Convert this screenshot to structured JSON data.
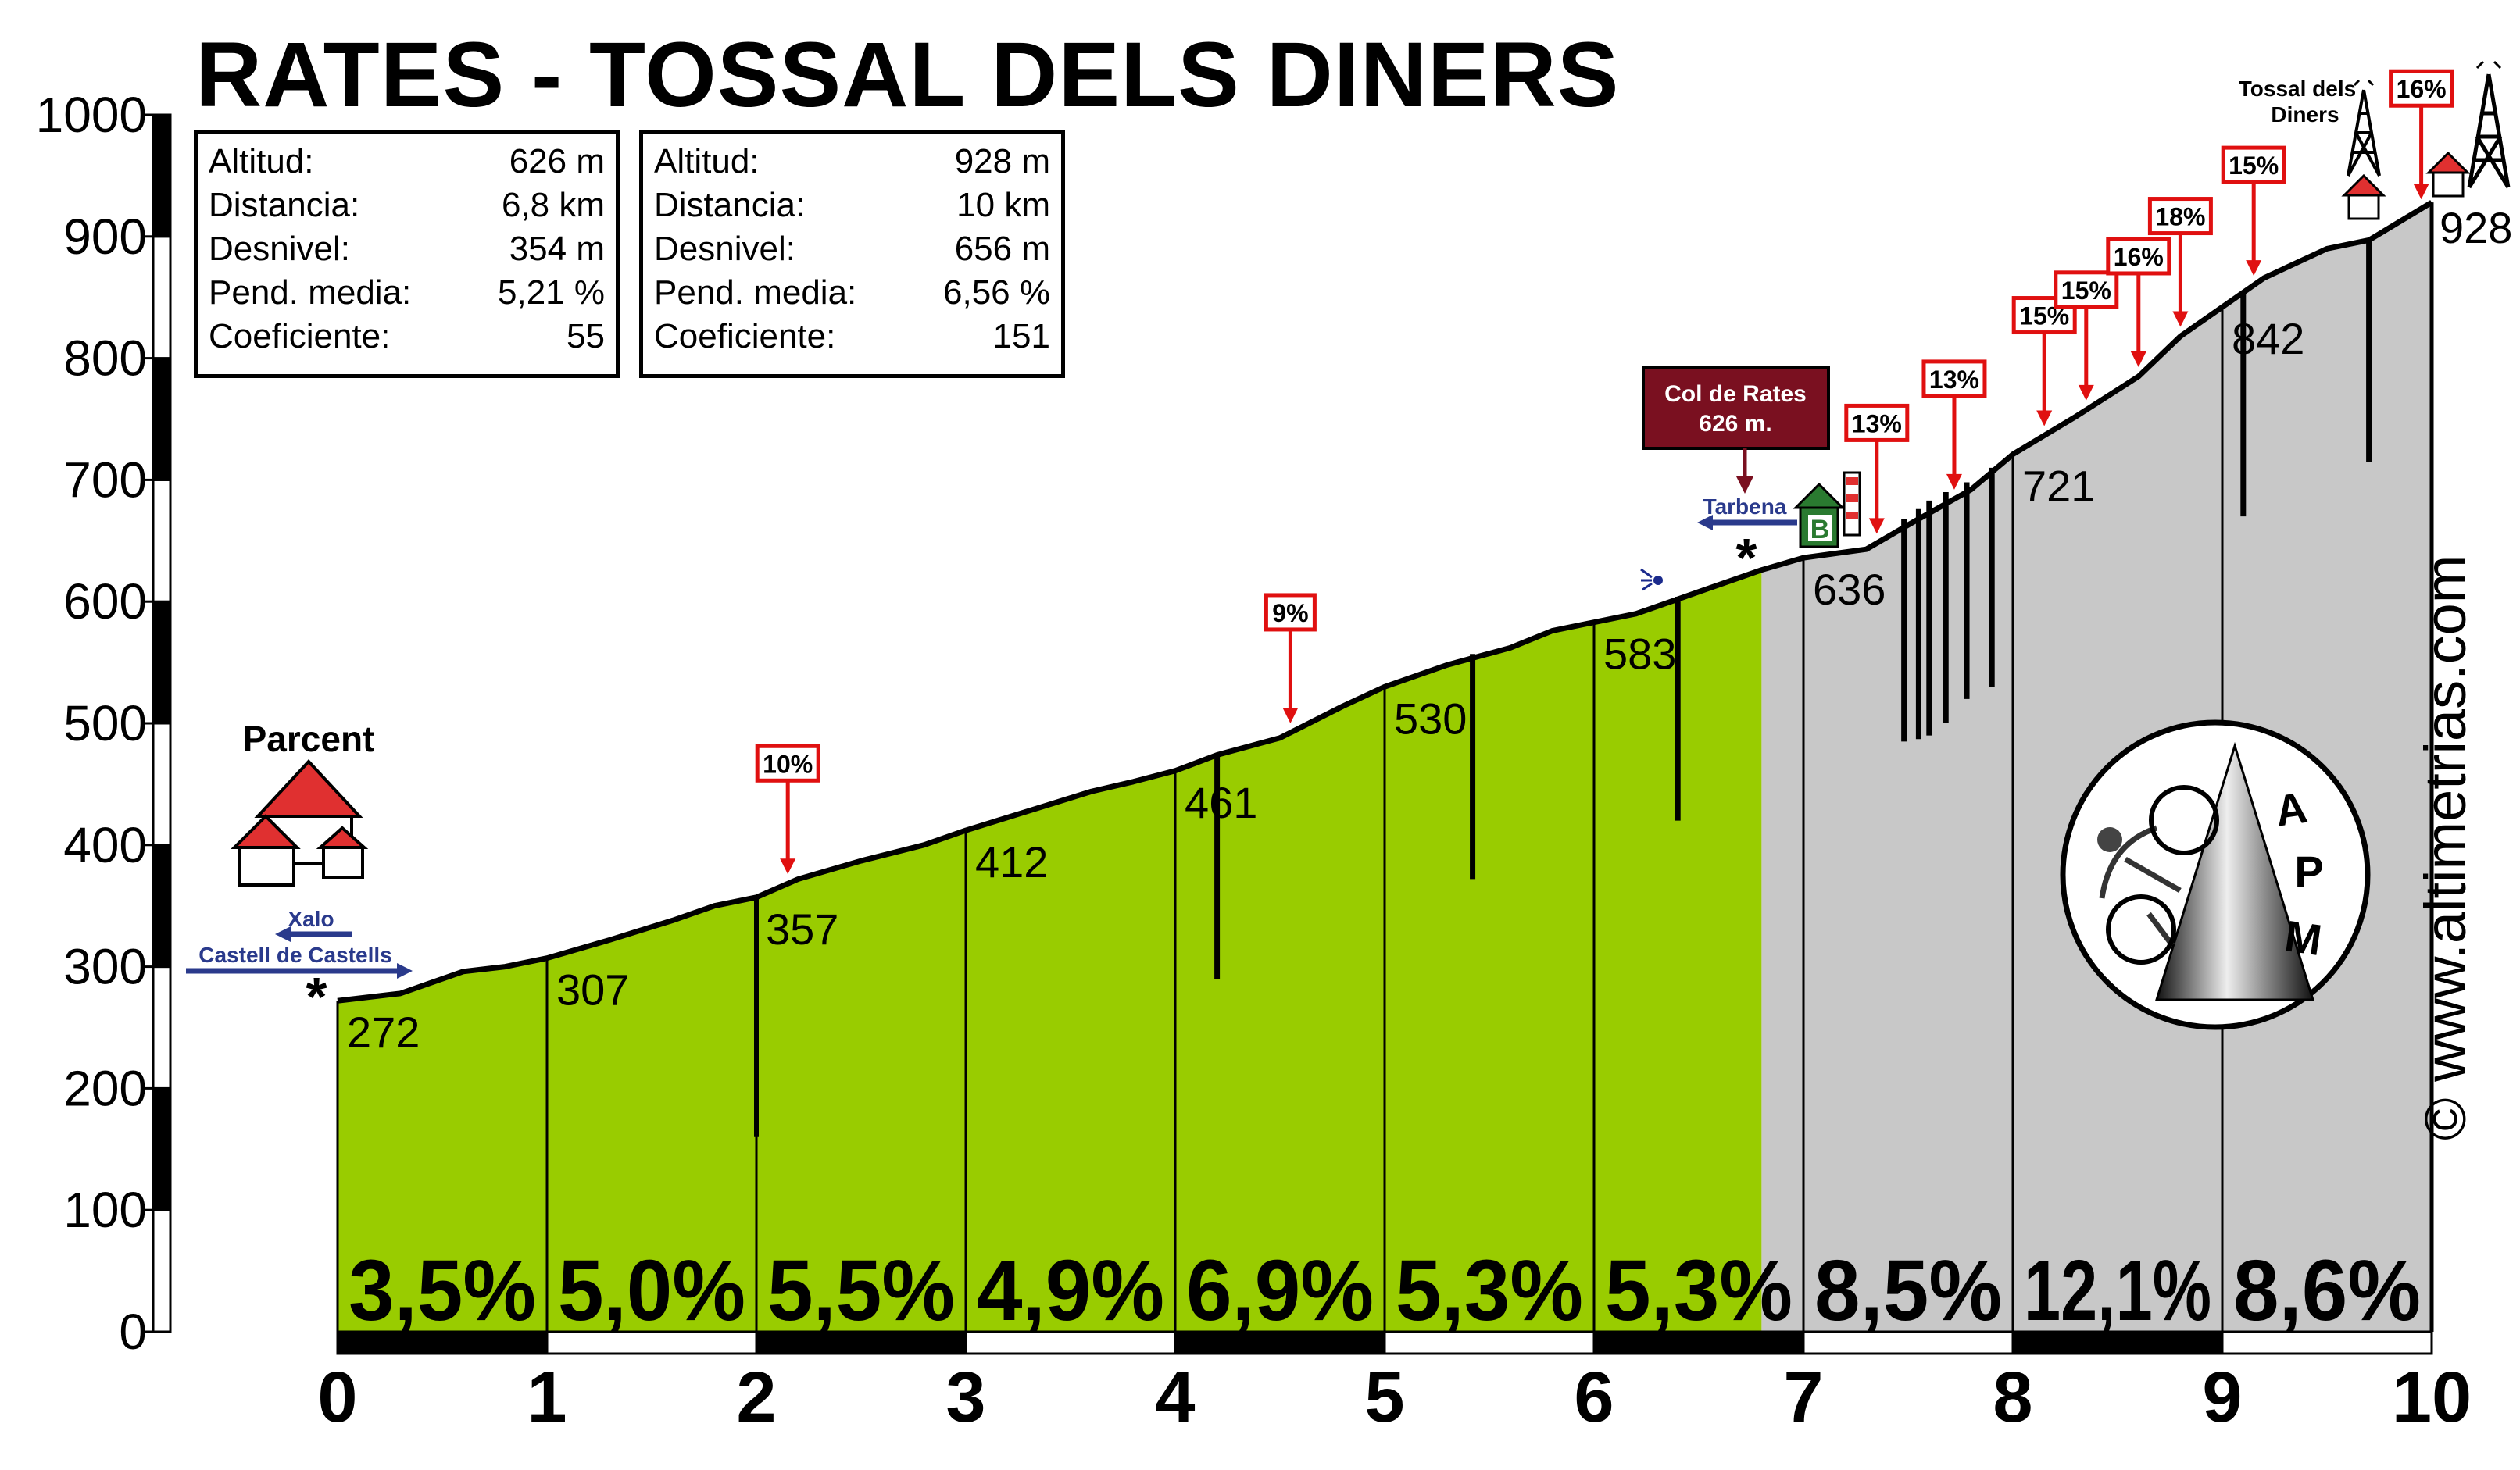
{
  "title": "RATES - TOSSAL DELS DINERS",
  "stats_left": {
    "altitud": {
      "label": "Altitud:",
      "value": "626 m"
    },
    "distancia": {
      "label": "Distancia:",
      "value": "6,8 km"
    },
    "desnivel": {
      "label": "Desnivel:",
      "value": "354 m"
    },
    "pendiente": {
      "label": "Pend. media:",
      "value": "5,21 %"
    },
    "coeficiente": {
      "label": "Coeficiente:",
      "value": "55"
    }
  },
  "stats_right": {
    "altitud": {
      "label": "Altitud:",
      "value": "928 m"
    },
    "distancia": {
      "label": "Distancia:",
      "value": "10 km"
    },
    "desnivel": {
      "label": "Desnivel:",
      "value": "656 m"
    },
    "pendiente": {
      "label": "Pend. media:",
      "value": "6,56 %"
    },
    "coeficiente": {
      "label": "Coeficiente:",
      "value": "151"
    }
  },
  "labels": {
    "parcent": "Parcent",
    "xalo": "Xalo",
    "castell": "Castell de Castells",
    "tarbena": "Tarbena",
    "col_name": "Col de Rates",
    "col_alt": "626 m.",
    "tossal_line1": "Tossal dels",
    "tossal_line2": "Diners",
    "watermark": "© www.altimetrias.com",
    "logo_text": "APM",
    "b_sign": "B"
  },
  "colors": {
    "green": "#99cc00",
    "gray": "#c8c8c8",
    "red": "#e01010",
    "navy": "#2a3a8c",
    "maroon": "#7a1020"
  },
  "chart_data": {
    "type": "area",
    "xlabel": "",
    "ylabel": "",
    "xlim": [
      0,
      10
    ],
    "ylim": [
      0,
      1000
    ],
    "x_ticks": [
      "0",
      "1",
      "2",
      "3",
      "4",
      "5",
      "6",
      "7",
      "8",
      "9",
      "10"
    ],
    "y_ticks": [
      "0",
      "100",
      "200",
      "300",
      "400",
      "500",
      "600",
      "700",
      "800",
      "900",
      "1000"
    ],
    "profile": [
      [
        0,
        272
      ],
      [
        0.3,
        278
      ],
      [
        0.6,
        296
      ],
      [
        0.8,
        300
      ],
      [
        1,
        307
      ],
      [
        1.3,
        322
      ],
      [
        1.6,
        338
      ],
      [
        1.8,
        350
      ],
      [
        2,
        357
      ],
      [
        2.2,
        372
      ],
      [
        2.5,
        387
      ],
      [
        2.8,
        400
      ],
      [
        3,
        412
      ],
      [
        3.3,
        428
      ],
      [
        3.6,
        444
      ],
      [
        3.8,
        452
      ],
      [
        4,
        461
      ],
      [
        4.2,
        474
      ],
      [
        4.5,
        488
      ],
      [
        4.8,
        514
      ],
      [
        5,
        530
      ],
      [
        5.3,
        548
      ],
      [
        5.6,
        562
      ],
      [
        5.8,
        576
      ],
      [
        6,
        583
      ],
      [
        6.2,
        590
      ],
      [
        6.5,
        608
      ],
      [
        6.8,
        626
      ],
      [
        7,
        636
      ],
      [
        7.3,
        643
      ],
      [
        7.5,
        663
      ],
      [
        7.8,
        692
      ],
      [
        8,
        721
      ],
      [
        8.3,
        752
      ],
      [
        8.6,
        785
      ],
      [
        8.8,
        818
      ],
      [
        9,
        842
      ],
      [
        9.2,
        866
      ],
      [
        9.5,
        890
      ],
      [
        9.7,
        897
      ],
      [
        10,
        928
      ]
    ],
    "km_markers": [
      {
        "x": 0,
        "value": "272"
      },
      {
        "x": 1,
        "value": "307"
      },
      {
        "x": 2,
        "value": "357"
      },
      {
        "x": 3,
        "value": "412"
      },
      {
        "x": 4,
        "value": "461"
      },
      {
        "x": 5,
        "value": "530"
      },
      {
        "x": 6,
        "value": "583"
      },
      {
        "x": 7,
        "value": "636"
      },
      {
        "x": 8,
        "value": "721"
      },
      {
        "x": 9,
        "value": "842"
      },
      {
        "x": 10,
        "value": "928"
      }
    ],
    "segment_gradients": [
      "3,5%",
      "5,0%",
      "5,5%",
      "4,9%",
      "6,9%",
      "5,3%",
      "5,3%",
      "8,5%",
      "12,1%",
      "8,6%"
    ],
    "col_split_x": 6.8,
    "max_gradients": [
      {
        "x": 2.15,
        "label": "10%"
      },
      {
        "x": 4.55,
        "label": "9%"
      },
      {
        "x": 7.35,
        "label": "13%"
      },
      {
        "x": 7.72,
        "label": "13%"
      },
      {
        "x": 8.15,
        "label": "15%"
      },
      {
        "x": 8.35,
        "label": "15%"
      },
      {
        "x": 8.6,
        "label": "16%"
      },
      {
        "x": 8.8,
        "label": "18%"
      },
      {
        "x": 9.15,
        "label": "15%"
      },
      {
        "x": 9.95,
        "label": "16%"
      }
    ],
    "curve_marks": [
      {
        "x": 2.0,
        "y0": 165,
        "y1": 357,
        "gap": [
          175,
          160
        ]
      },
      {
        "x": 4.2,
        "y0": 290,
        "y1": 474
      },
      {
        "x": 5.42,
        "y0": 372,
        "y1": 557
      },
      {
        "x": 6.4,
        "y0": 420,
        "y1": 604
      },
      {
        "x": 7.48,
        "y0": 485,
        "y1": 668
      },
      {
        "x": 7.55,
        "y0": 487,
        "y1": 676
      },
      {
        "x": 7.6,
        "y0": 490,
        "y1": 683
      },
      {
        "x": 7.68,
        "y0": 500,
        "y1": 690
      },
      {
        "x": 7.78,
        "y0": 520,
        "y1": 698
      },
      {
        "x": 7.9,
        "y0": 530,
        "y1": 710
      },
      {
        "x": 9.1,
        "y0": 670,
        "y1": 855
      },
      {
        "x": 9.7,
        "y0": 715,
        "y1": 897
      }
    ]
  }
}
